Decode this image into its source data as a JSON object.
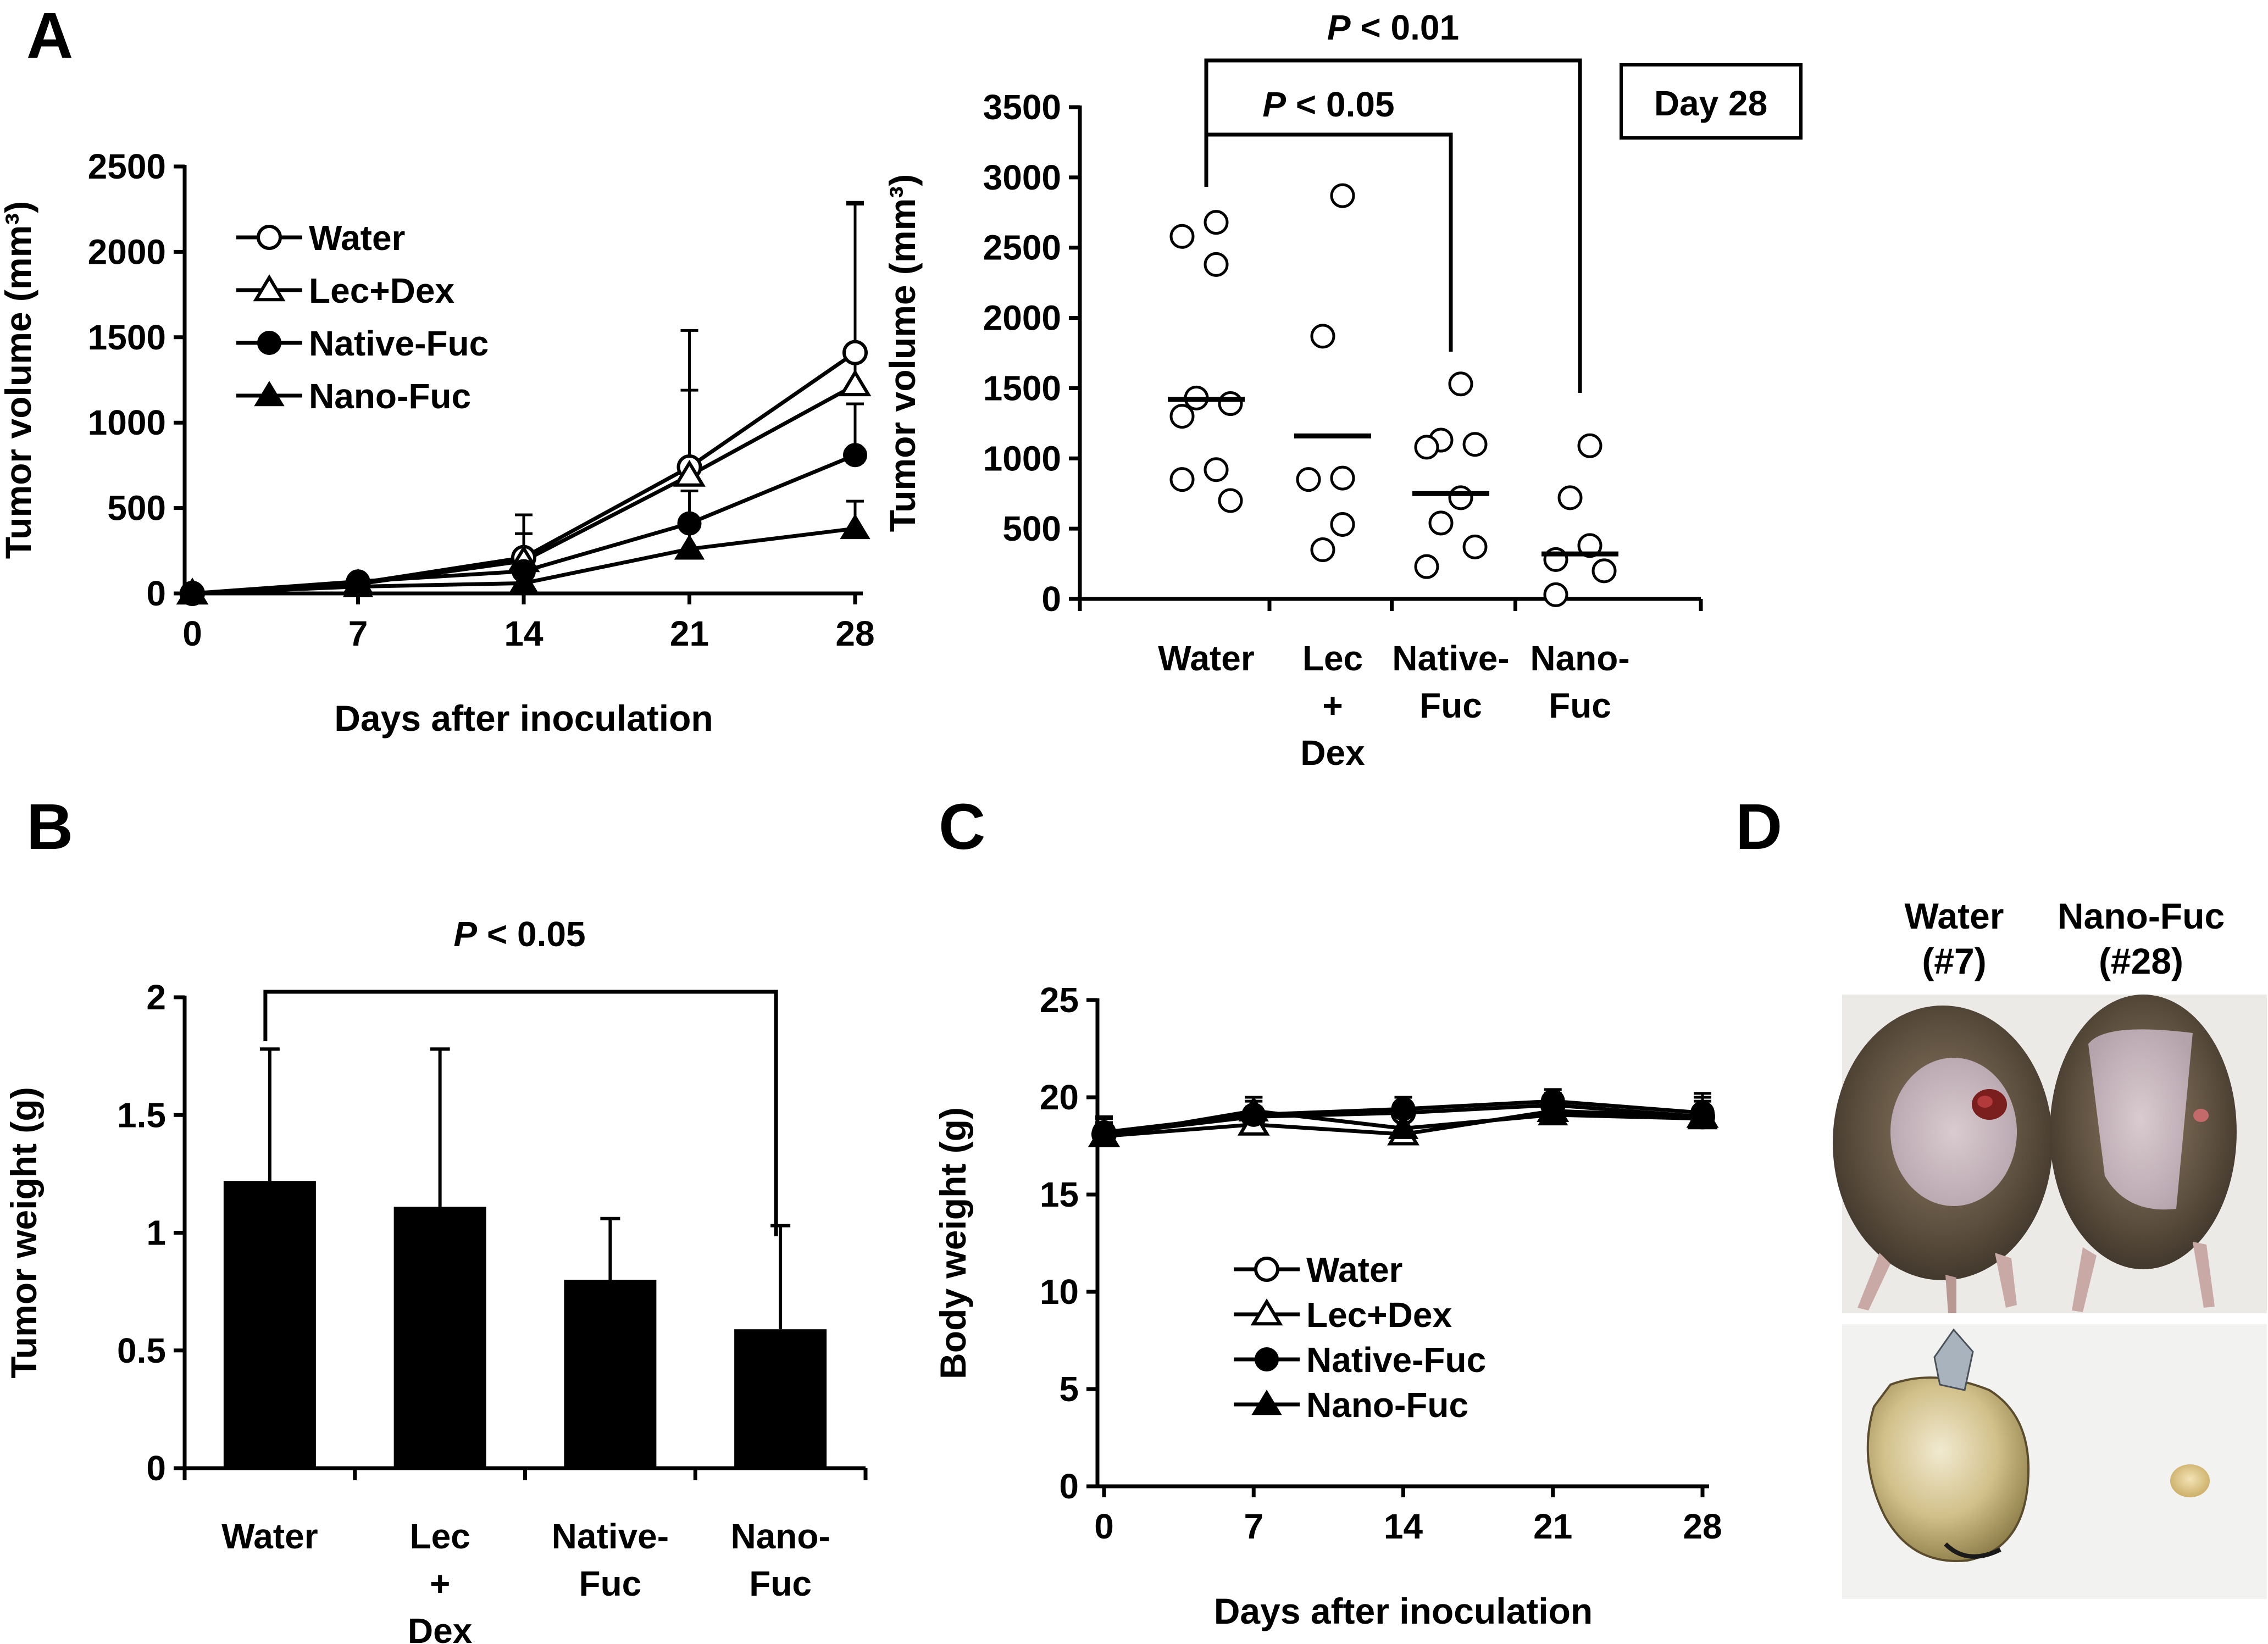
{
  "colors": {
    "ink": "#000000",
    "background": "#ffffff"
  },
  "panels": {
    "A": {
      "letter": "A"
    },
    "B": {
      "letter": "B"
    },
    "C": {
      "letter": "C"
    },
    "D": {
      "letter": "D"
    }
  },
  "chart_data": [
    {
      "id": "A-line",
      "type": "line",
      "title": "",
      "xlabel": "Days after inoculation",
      "ylabel": "Tumor volume (mm³)",
      "x": [
        0,
        7,
        14,
        21,
        28
      ],
      "xticks": [
        "0",
        "7",
        "14",
        "21",
        "28"
      ],
      "xlim": [
        0,
        28
      ],
      "ylim": [
        0,
        2500
      ],
      "yticks": [
        "0",
        "500",
        "1000",
        "1500",
        "2000",
        "2500"
      ],
      "legend_position": "top-left",
      "series": [
        {
          "name": "Water",
          "marker": "open-circle",
          "values": [
            0,
            60,
            210,
            740,
            1410
          ],
          "errors": [
            0,
            25,
            250,
            800,
            880
          ]
        },
        {
          "name": "Lec+Dex",
          "marker": "open-triangle",
          "values": [
            0,
            55,
            190,
            690,
            1220
          ],
          "errors": [
            0,
            25,
            160,
            500,
            1060
          ]
        },
        {
          "name": "Native-Fuc",
          "marker": "filled-circle",
          "values": [
            0,
            70,
            130,
            410,
            810
          ],
          "errors": [
            0,
            20,
            90,
            190,
            300
          ]
        },
        {
          "name": "Nano-Fuc",
          "marker": "filled-triangle",
          "values": [
            0,
            40,
            60,
            260,
            380
          ],
          "errors": [
            0,
            15,
            40,
            130,
            160
          ]
        }
      ]
    },
    {
      "id": "A-scatter",
      "type": "scatter",
      "title": "Day 28",
      "xlabel": "",
      "ylabel": "Tumor volume (mm³)",
      "ylim": [
        0,
        3500
      ],
      "yticks": [
        "0",
        "500",
        "1000",
        "1500",
        "2000",
        "2500",
        "3000",
        "3500"
      ],
      "groups": [
        {
          "label": "Water",
          "label_lines": [
            "Water"
          ],
          "points": [
            2680,
            2580,
            2380,
            1430,
            1390,
            1300,
            920,
            850,
            700
          ],
          "mean": 1420
        },
        {
          "label": "Lec + Dex",
          "label_lines": [
            "Lec",
            "+",
            "Dex"
          ],
          "points": [
            2870,
            1870,
            860,
            850,
            530,
            350
          ],
          "mean": 1160
        },
        {
          "label": "Native-Fuc",
          "label_lines": [
            "Native-",
            "Fuc"
          ],
          "points": [
            1530,
            1130,
            1100,
            1080,
            720,
            540,
            370,
            230
          ],
          "mean": 750
        },
        {
          "label": "Nano-Fuc",
          "label_lines": [
            "Nano-",
            "Fuc"
          ],
          "points": [
            1090,
            720,
            380,
            280,
            200,
            30
          ],
          "mean": 320
        }
      ],
      "annotations": [
        {
          "text_italic": "P",
          "text": " < 0.01",
          "from_group": "Water",
          "to_group": "Nano-Fuc"
        },
        {
          "text_italic": "P",
          "text": " < 0.05",
          "from_group": "Water",
          "to_group": "Native-Fuc"
        }
      ]
    },
    {
      "id": "B-bar",
      "type": "bar",
      "title": "",
      "xlabel": "",
      "ylabel": "Tumor weight (g)",
      "categories": [
        "Water",
        "Lec + Dex",
        "Native-Fuc",
        "Nano-Fuc"
      ],
      "category_lines": [
        [
          "Water"
        ],
        [
          "Lec",
          "+",
          "Dex"
        ],
        [
          "Native-",
          "Fuc"
        ],
        [
          "Nano-",
          "Fuc"
        ]
      ],
      "values": [
        1.22,
        1.11,
        0.8,
        0.59
      ],
      "errors": [
        0.56,
        0.67,
        0.26,
        0.44
      ],
      "ylim": [
        0,
        2
      ],
      "yticks": [
        "0",
        "0.5",
        "1",
        "1.5",
        "2"
      ],
      "annotations": [
        {
          "text_italic": "P",
          "text": " < 0.05",
          "from_category": "Water",
          "to_category": "Nano-Fuc"
        }
      ]
    },
    {
      "id": "C-line",
      "type": "line",
      "title": "",
      "xlabel": "Days after inoculation",
      "ylabel": "Body weight (g)",
      "x": [
        0,
        7,
        14,
        21,
        28
      ],
      "xticks": [
        "0",
        "7",
        "14",
        "21",
        "28"
      ],
      "xlim": [
        0,
        28
      ],
      "ylim": [
        0,
        25
      ],
      "yticks": [
        "0",
        "5",
        "10",
        "15",
        "20",
        "25"
      ],
      "legend_position": "bottom-center",
      "series": [
        {
          "name": "Water",
          "marker": "open-circle",
          "values": [
            18.1,
            19.0,
            19.2,
            19.6,
            19.0
          ],
          "errors": [
            0.8,
            1.0,
            0.8,
            0.6,
            1.0
          ]
        },
        {
          "name": "Lec+Dex",
          "marker": "open-triangle",
          "values": [
            18.0,
            18.6,
            18.1,
            19.3,
            19.0
          ],
          "errors": [
            0.7,
            0.9,
            0.8,
            0.7,
            1.2
          ]
        },
        {
          "name": "Native-Fuc",
          "marker": "filled-circle",
          "values": [
            18.2,
            19.1,
            19.4,
            19.8,
            19.2
          ],
          "errors": [
            0.8,
            0.7,
            0.6,
            0.6,
            0.8
          ]
        },
        {
          "name": "Nano-Fuc",
          "marker": "filled-triangle",
          "values": [
            18.0,
            19.3,
            18.4,
            19.1,
            18.9
          ],
          "errors": [
            0.6,
            0.7,
            0.8,
            0.5,
            0.9
          ]
        }
      ]
    }
  ],
  "photos": {
    "labels": [
      {
        "line1": "Water",
        "line2": "(#7)"
      },
      {
        "line1": "Nano-Fuc",
        "line2": "(#28)"
      }
    ]
  }
}
